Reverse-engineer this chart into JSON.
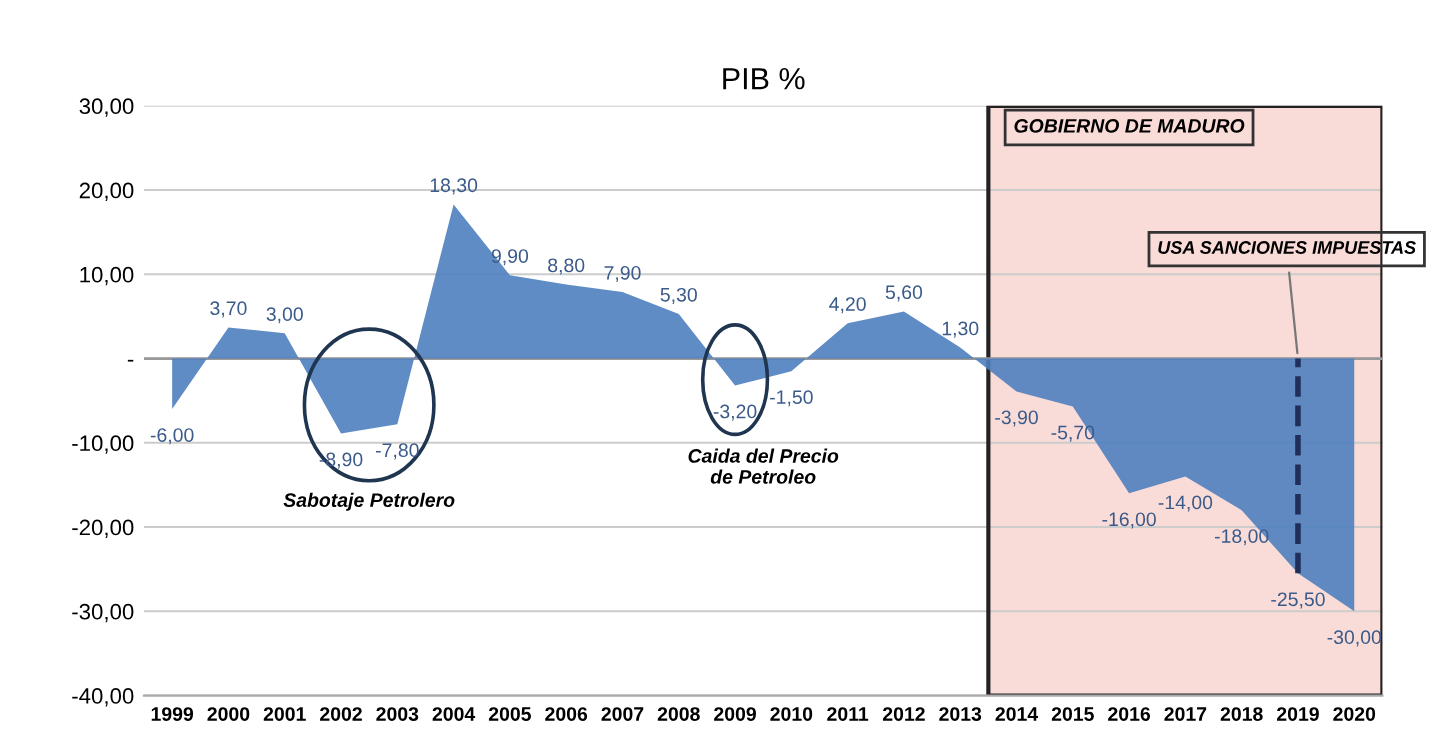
{
  "chart_data": {
    "type": "area",
    "title": "PIB %",
    "categories": [
      "1999",
      "2000",
      "2001",
      "2002",
      "2003",
      "2004",
      "2005",
      "2006",
      "2007",
      "2008",
      "2009",
      "2010",
      "2011",
      "2012",
      "2013",
      "2014",
      "2015",
      "2016",
      "2017",
      "2018",
      "2019",
      "2020"
    ],
    "values": [
      -6.0,
      3.7,
      3.0,
      -8.9,
      -7.8,
      18.3,
      9.9,
      8.8,
      7.9,
      5.3,
      -3.2,
      -1.5,
      4.2,
      5.6,
      1.3,
      -3.9,
      -5.7,
      -16.0,
      -14.0,
      -18.0,
      -25.5,
      -30.0
    ],
    "value_labels": [
      "-6,00",
      "3,70",
      "3,00",
      "-8,90",
      "-7,80",
      "18,30",
      "9,90",
      "8,80",
      "7,90",
      "5,30",
      "-3,20",
      "-1,50",
      "4,20",
      "5,60",
      "1,30",
      "-3,90",
      "-5,70",
      "-16,00",
      "-14,00",
      "-18,00",
      "-25,50",
      "-30,00"
    ],
    "color": "#4f7fc0",
    "ylim": [
      -40,
      30
    ],
    "yticks": [
      {
        "value": 30,
        "label": "30,00"
      },
      {
        "value": 20,
        "label": "20,00"
      },
      {
        "value": 10,
        "label": "10,00"
      },
      {
        "value": 0,
        "label": "-"
      },
      {
        "value": -10,
        "label": "-10,00"
      },
      {
        "value": -20,
        "label": "-20,00"
      },
      {
        "value": -30,
        "label": "-30,00"
      },
      {
        "value": -40,
        "label": "-40,00"
      }
    ],
    "grid": "y",
    "bands": [
      {
        "axis": "x",
        "from": "2014",
        "to": "2020",
        "label": "GOBIERNO DE MADURO",
        "color": "#f9dcd8"
      }
    ],
    "ref_lines": [
      {
        "axis": "x",
        "value": "2019",
        "label": "USA SANCIONES IMPUESTAS",
        "line_style": "dashed",
        "color": "#1f2f5a"
      }
    ],
    "annotations": [
      "Sabotaje Petrolero",
      "Caida del Precio\nde Petroleo"
    ]
  }
}
